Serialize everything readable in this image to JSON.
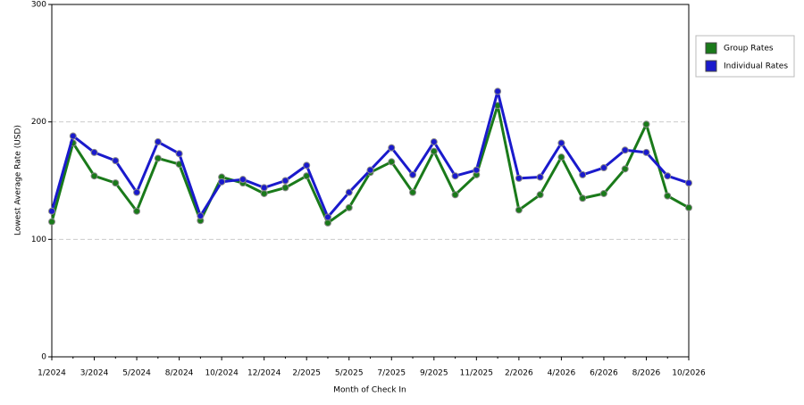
{
  "chart_data": {
    "type": "line",
    "y_label": "Lowest Average Rate (USD)",
    "x_label": "Month of Check In",
    "categories": [
      "1/2024",
      null,
      "3/2024",
      null,
      "5/2024",
      null,
      "8/2024",
      null,
      "10/2024",
      null,
      "12/2024",
      null,
      "2/2025",
      null,
      "5/2025",
      null,
      "7/2025",
      null,
      "9/2025",
      null,
      "11/2025",
      null,
      "2/2026",
      null,
      "4/2026",
      null,
      "6/2026",
      null,
      "8/2026",
      null,
      "10/2026"
    ],
    "series": [
      {
        "name": "Group Rates",
        "color": "#1a7a1a",
        "values": [
          115,
          182,
          154,
          148,
          124,
          169,
          164,
          116,
          153,
          148,
          139,
          144,
          154,
          114,
          127,
          157,
          166,
          140,
          175,
          138,
          155,
          214,
          125,
          138,
          170,
          135,
          139,
          160,
          198,
          137,
          127
        ]
      },
      {
        "name": "Individual Rates",
        "color": "#1a1acc",
        "values": [
          124,
          188,
          174,
          167,
          140,
          183,
          173,
          120,
          149,
          151,
          144,
          150,
          163,
          119,
          140,
          159,
          178,
          155,
          183,
          154,
          159,
          226,
          152,
          153,
          182,
          155,
          161,
          176,
          174,
          154,
          148
        ]
      }
    ],
    "ylim": [
      0,
      300
    ],
    "yticks": [
      0,
      100,
      200,
      300
    ],
    "grid": true,
    "legend": "right"
  }
}
